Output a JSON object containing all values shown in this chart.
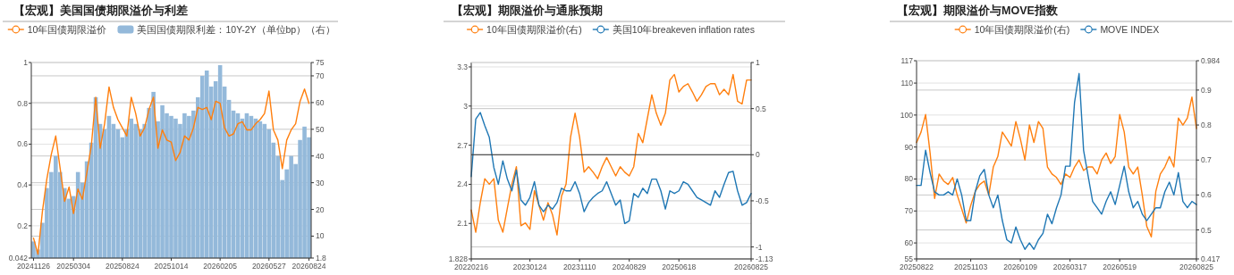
{
  "chart_data": [
    {
      "type": "line",
      "title": "【宏观】美国国债期限溢价与利差",
      "legend": "top",
      "grid": true,
      "categories": [
        "20241126",
        null,
        null,
        null,
        null,
        null,
        null,
        null,
        null,
        "20250304",
        null,
        null,
        null,
        null,
        null,
        null,
        null,
        null,
        null,
        null,
        "20250824",
        null,
        null,
        null,
        null,
        null,
        null,
        null,
        null,
        null,
        null,
        "20251014",
        null,
        null,
        null,
        null,
        null,
        null,
        null,
        null,
        null,
        null,
        "20260205",
        null,
        null,
        null,
        null,
        null,
        null,
        null,
        null,
        null,
        null,
        "20260527",
        null,
        null,
        null,
        null,
        null,
        null,
        null,
        null,
        "20260824"
      ],
      "ylim": [
        0.042,
        1
      ],
      "yticks": [
        0.042,
        0.2,
        0.4,
        0.6,
        0.8,
        1
      ],
      "y2lim": [
        1.8,
        75
      ],
      "y2ticks": [
        1.8,
        10,
        20,
        30,
        40,
        50,
        60,
        70,
        75
      ],
      "series": [
        {
          "name": "10年国债期限溢价",
          "color": "#ff7f0e",
          "values": [
            0.14,
            0.06,
            0.27,
            0.43,
            0.55,
            0.64,
            0.48,
            0.32,
            0.39,
            0.26,
            0.38,
            0.33,
            0.46,
            0.59,
            0.83,
            0.58,
            0.7,
            0.88,
            0.78,
            0.72,
            0.68,
            0.64,
            0.83,
            0.75,
            0.64,
            0.68,
            0.77,
            0.83,
            0.58,
            0.67,
            0.62,
            0.61,
            0.52,
            0.56,
            0.64,
            0.62,
            0.68,
            0.78,
            0.77,
            0.78,
            0.72,
            0.81,
            0.8,
            0.68,
            0.64,
            0.65,
            0.7,
            0.71,
            0.67,
            0.67,
            0.7,
            0.72,
            0.75,
            0.86,
            0.67,
            0.62,
            0.48,
            0.62,
            0.67,
            0.7,
            0.81,
            0.87,
            0.8
          ]
        },
        {
          "name": "美国国债期限利差：10Y-2Y（单位bp）（右）",
          "type": "bar",
          "axis": "y2",
          "color": "#94b9da",
          "values": [
            8,
            5,
            15,
            28,
            34,
            40,
            34,
            28,
            24,
            25,
            34,
            30,
            38,
            45,
            62,
            52,
            50,
            55,
            52,
            50,
            47,
            50,
            54,
            52,
            50,
            52,
            58,
            64,
            53,
            59,
            56,
            55,
            54,
            52,
            56,
            55,
            57,
            62,
            70,
            72,
            66,
            68,
            74,
            66,
            61,
            57,
            56,
            54,
            56,
            55,
            54,
            53,
            52,
            50,
            45,
            40,
            31,
            35,
            40,
            37,
            46,
            51,
            47
          ]
        }
      ]
    },
    {
      "type": "line",
      "title": "【宏观】期限溢价与通胀预期",
      "legend": "top",
      "grid": true,
      "categories": [
        "20220216",
        null,
        null,
        null,
        null,
        null,
        null,
        null,
        null,
        null,
        null,
        null,
        null,
        "20230124",
        null,
        null,
        null,
        null,
        null,
        null,
        null,
        null,
        null,
        null,
        "20231110",
        null,
        null,
        null,
        null,
        null,
        null,
        null,
        null,
        null,
        null,
        "20240829",
        null,
        null,
        null,
        null,
        null,
        null,
        null,
        null,
        null,
        null,
        "20250618",
        null,
        null,
        null,
        null,
        null,
        null,
        null,
        null,
        null,
        null,
        null,
        null,
        null,
        null,
        null,
        "20260825"
      ],
      "ylim": [
        1.828,
        3.334
      ],
      "yticks": [
        1.828,
        2.1,
        2.4,
        2.7,
        3,
        3.3
      ],
      "y2lim": [
        -1.13,
        1
      ],
      "y2ticks": [
        -1.13,
        -1,
        -0.5,
        0,
        0.5,
        1
      ],
      "ref_lines": [
        {
          "axis": "y2",
          "value": 0,
          "color": "#333333"
        }
      ],
      "series": [
        {
          "name": "10年国债期限溢价(右)",
          "axis": "y2",
          "color": "#ff7f0e",
          "values": [
            -0.6,
            -0.84,
            -0.52,
            -0.26,
            -0.32,
            -0.26,
            -0.71,
            -0.84,
            -0.58,
            -0.32,
            -0.13,
            -0.77,
            -0.74,
            -0.81,
            -0.39,
            -0.55,
            -0.71,
            -0.52,
            -0.65,
            -0.87,
            -0.45,
            -0.32,
            0.19,
            0.45,
            0.19,
            -0.19,
            -0.13,
            -0.19,
            -0.26,
            -0.13,
            -0.03,
            -0.13,
            -0.23,
            -0.13,
            -0.19,
            -0.23,
            -0.13,
            0.23,
            0.13,
            0.39,
            0.65,
            0.45,
            0.32,
            0.45,
            0.81,
            0.87,
            0.68,
            0.74,
            0.77,
            0.68,
            0.58,
            0.65,
            0.74,
            0.77,
            0.77,
            0.65,
            0.71,
            0.65,
            0.87,
            0.58,
            0.55,
            0.81,
            0.81
          ]
        },
        {
          "name": "美国10年breakeven inflation rates",
          "color": "#1f77b4",
          "values": [
            2.46,
            2.9,
            2.95,
            2.85,
            2.76,
            2.53,
            2.4,
            2.58,
            2.44,
            2.35,
            2.51,
            2.28,
            2.24,
            2.3,
            2.42,
            2.24,
            2.19,
            2.24,
            2.21,
            2.26,
            2.37,
            2.35,
            2.35,
            2.42,
            2.33,
            2.19,
            2.26,
            2.3,
            2.33,
            2.35,
            2.42,
            2.33,
            2.24,
            2.28,
            2.1,
            2.12,
            2.33,
            2.3,
            2.37,
            2.33,
            2.44,
            2.44,
            2.35,
            2.21,
            2.35,
            2.33,
            2.35,
            2.42,
            2.4,
            2.35,
            2.3,
            2.28,
            2.26,
            2.24,
            2.35,
            2.3,
            2.4,
            2.49,
            2.5,
            2.35,
            2.24,
            2.26,
            2.33
          ]
        }
      ]
    },
    {
      "type": "line",
      "title": "【宏观】期限溢价与MOVE指数",
      "legend": "top",
      "grid": true,
      "categories": [
        "20250822",
        null,
        null,
        null,
        null,
        null,
        null,
        null,
        null,
        null,
        null,
        null,
        "20251103",
        null,
        null,
        null,
        null,
        null,
        null,
        null,
        null,
        null,
        null,
        "20260109",
        null,
        null,
        null,
        null,
        null,
        null,
        null,
        null,
        null,
        null,
        "20260317",
        null,
        null,
        null,
        null,
        null,
        null,
        null,
        null,
        null,
        null,
        "20260519",
        null,
        null,
        null,
        null,
        null,
        null,
        null,
        null,
        null,
        null,
        null,
        null,
        null,
        null,
        null,
        null,
        "20260825"
      ],
      "ylim": [
        55,
        117
      ],
      "yticks": [
        55,
        60,
        70,
        80,
        90,
        100,
        110,
        117
      ],
      "y2lim": [
        0.417,
        0.984
      ],
      "y2ticks": [
        0.417,
        0.5,
        0.6,
        0.7,
        0.8,
        0.9,
        0.984
      ],
      "series": [
        {
          "name": "10年国债期限溢价(右)",
          "axis": "y2",
          "color": "#ff7f0e",
          "values": [
            0.75,
            0.78,
            0.83,
            0.72,
            0.59,
            0.66,
            0.64,
            0.63,
            0.65,
            0.6,
            0.56,
            0.52,
            0.57,
            0.61,
            0.63,
            0.64,
            0.6,
            0.68,
            0.71,
            0.78,
            0.76,
            0.74,
            0.81,
            0.76,
            0.7,
            0.8,
            0.75,
            0.81,
            0.79,
            0.68,
            0.66,
            0.65,
            0.63,
            0.66,
            0.65,
            0.68,
            0.7,
            0.67,
            0.68,
            0.68,
            0.66,
            0.7,
            0.72,
            0.69,
            0.71,
            0.83,
            0.78,
            0.68,
            0.66,
            0.68,
            0.6,
            0.51,
            0.48,
            0.61,
            0.66,
            0.68,
            0.71,
            0.68,
            0.82,
            0.8,
            0.82,
            0.88,
            0.79
          ]
        },
        {
          "name": "MOVE INDEX",
          "color": "#1f77b4",
          "values": [
            78,
            78,
            89,
            82,
            76,
            75,
            75,
            76,
            75,
            80,
            75,
            67,
            67,
            76,
            81,
            83,
            75,
            71,
            75,
            67,
            61,
            60,
            65,
            61,
            58,
            60,
            58,
            61,
            63,
            69,
            66,
            71,
            75,
            84,
            84,
            104,
            113,
            89,
            81,
            73,
            71,
            69,
            73,
            76,
            72,
            78,
            84,
            76,
            71,
            73,
            69,
            67,
            69,
            71,
            71,
            76,
            79,
            75,
            82,
            73,
            71,
            73,
            72
          ]
        }
      ]
    }
  ]
}
